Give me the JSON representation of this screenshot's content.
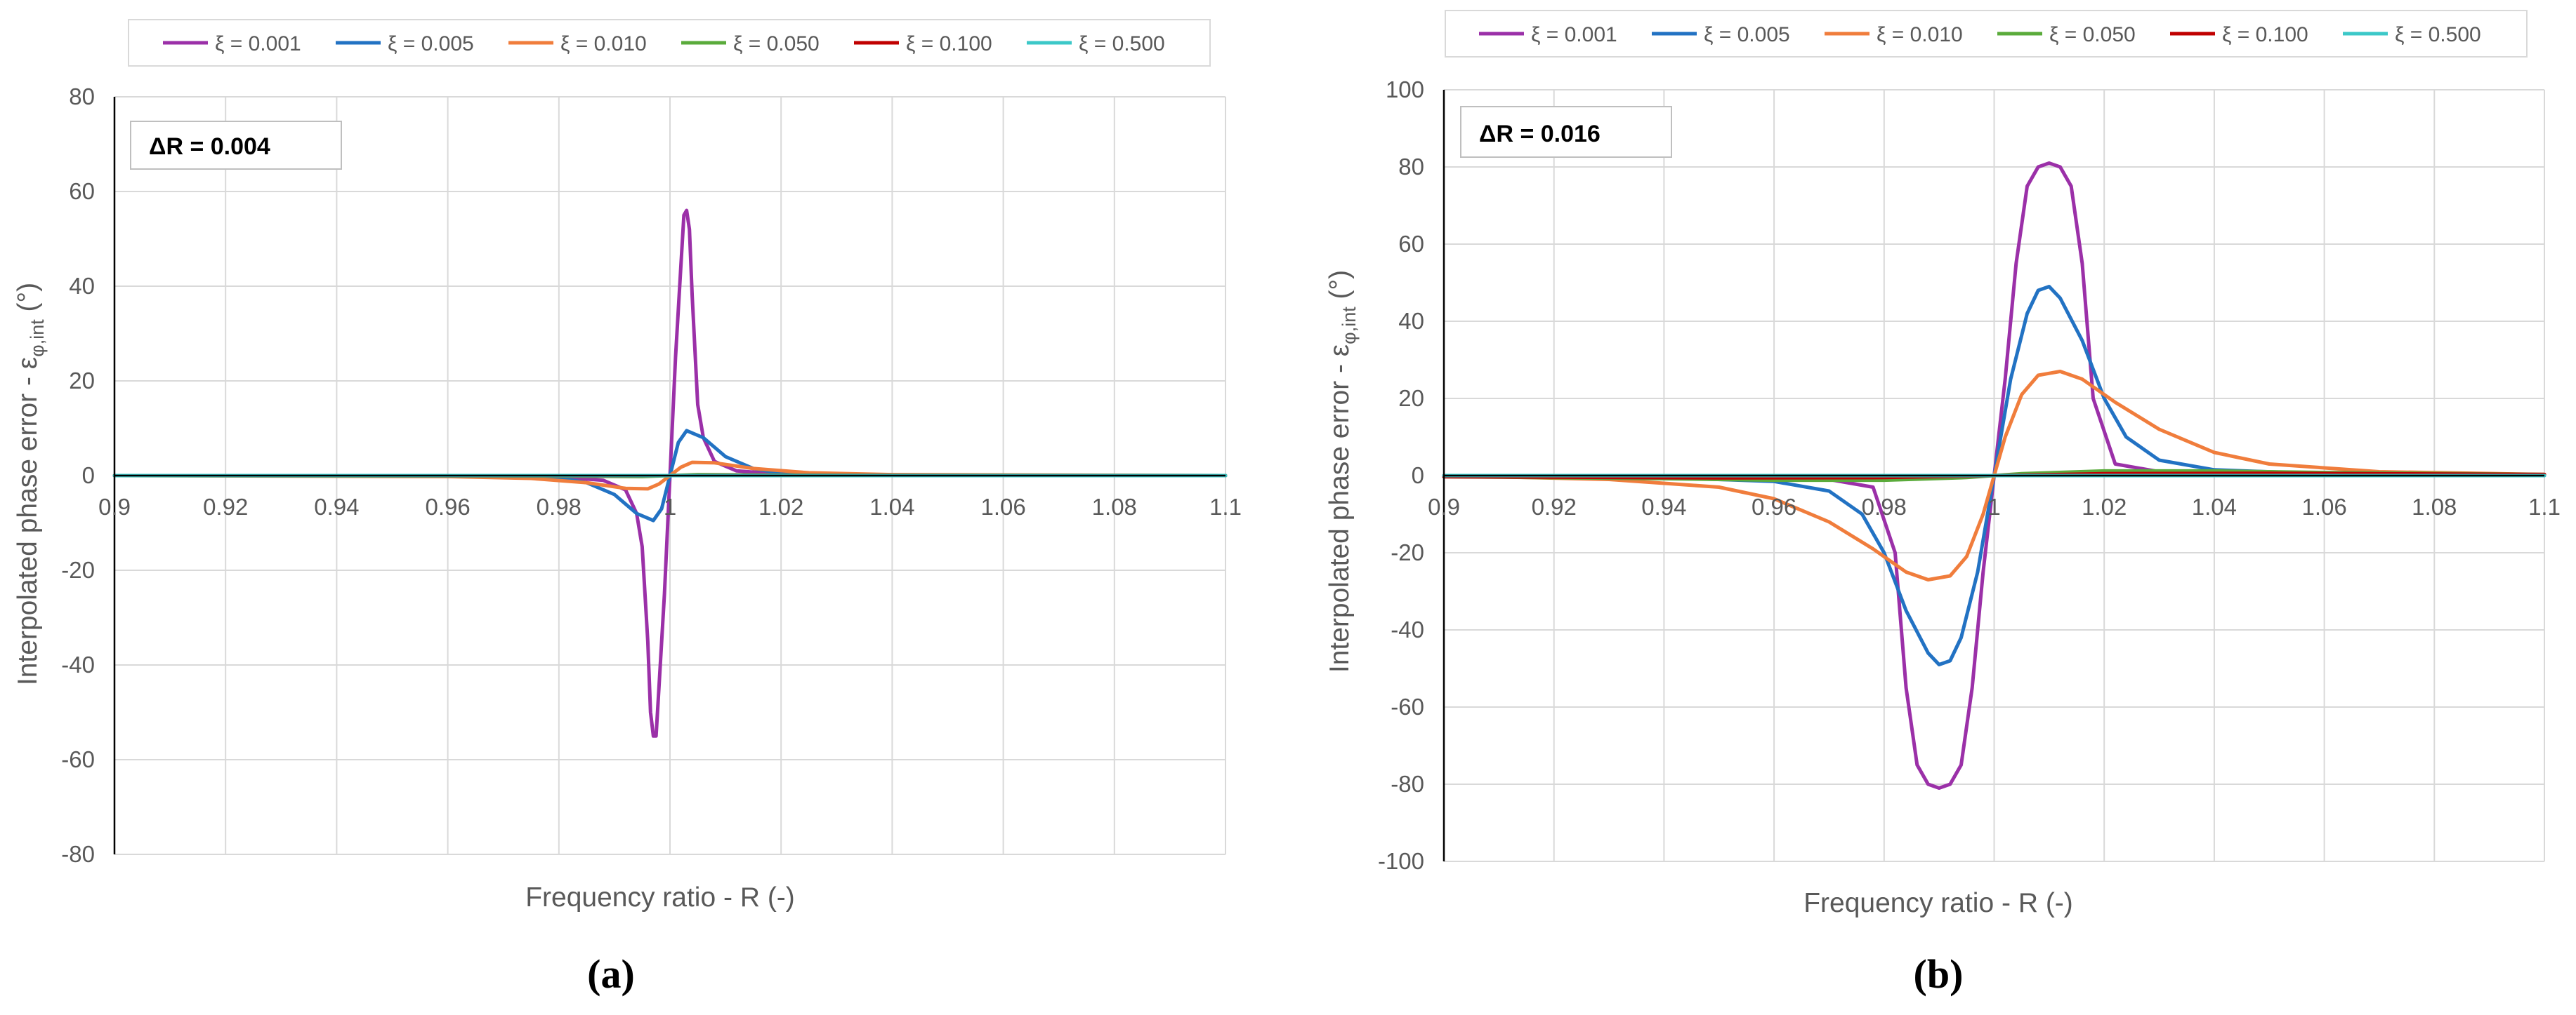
{
  "chart_data": [
    {
      "type": "line",
      "panel_label": "(a)",
      "annotation": "ΔR = 0.004",
      "xlabel": "Frequency ratio - R (-)",
      "ylabel_main": "Interpolated phase error - ε",
      "ylabel_sub": "φ,int",
      "ylabel_tail": " (°)",
      "xlim": [
        0.9,
        1.1
      ],
      "ylim": [
        -80,
        80
      ],
      "xticks": [
        "0.9",
        "0.92",
        "0.94",
        "0.96",
        "0.98",
        "1",
        "1.02",
        "1.04",
        "1.06",
        "1.08",
        "1.1"
      ],
      "yticks": [
        "80",
        "60",
        "40",
        "20",
        "0",
        "-20",
        "-40",
        "-60",
        "-80"
      ],
      "grid": true,
      "legend_position": "top",
      "series": [
        {
          "name": "ξ = 0.001",
          "color": "#9b30a8",
          "points": [
            [
              0.9,
              0
            ],
            [
              0.97,
              0
            ],
            [
              0.98,
              -0.3
            ],
            [
              0.988,
              -1
            ],
            [
              0.992,
              -3
            ],
            [
              0.994,
              -8
            ],
            [
              0.995,
              -15
            ],
            [
              0.996,
              -35
            ],
            [
              0.9965,
              -50
            ],
            [
              0.997,
              -55
            ],
            [
              0.9975,
              -55
            ],
            [
              0.998,
              -45
            ],
            [
              0.999,
              -25
            ],
            [
              1.0,
              0
            ],
            [
              1.001,
              25
            ],
            [
              1.002,
              45
            ],
            [
              1.0025,
              55
            ],
            [
              1.003,
              56
            ],
            [
              1.0035,
              52
            ],
            [
              1.004,
              38
            ],
            [
              1.005,
              15
            ],
            [
              1.006,
              8
            ],
            [
              1.008,
              3
            ],
            [
              1.012,
              1
            ],
            [
              1.02,
              0.3
            ],
            [
              1.03,
              0
            ],
            [
              1.1,
              0
            ]
          ]
        },
        {
          "name": "ξ = 0.005",
          "color": "#2272c3",
          "points": [
            [
              0.9,
              0
            ],
            [
              0.97,
              0
            ],
            [
              0.98,
              -0.5
            ],
            [
              0.985,
              -1.5
            ],
            [
              0.99,
              -4
            ],
            [
              0.994,
              -8
            ],
            [
              0.997,
              -9.5
            ],
            [
              0.9985,
              -7
            ],
            [
              1.0,
              0
            ],
            [
              1.0015,
              7
            ],
            [
              1.003,
              9.5
            ],
            [
              1.006,
              8
            ],
            [
              1.01,
              4
            ],
            [
              1.015,
              1.5
            ],
            [
              1.02,
              0.5
            ],
            [
              1.03,
              0.1
            ],
            [
              1.1,
              0
            ]
          ]
        },
        {
          "name": "ξ = 0.010",
          "color": "#f07d3c",
          "points": [
            [
              0.9,
              0
            ],
            [
              0.96,
              -0.2
            ],
            [
              0.975,
              -0.6
            ],
            [
              0.985,
              -1.5
            ],
            [
              0.992,
              -2.7
            ],
            [
              0.996,
              -2.8
            ],
            [
              0.998,
              -1.8
            ],
            [
              1.0,
              0
            ],
            [
              1.002,
              1.8
            ],
            [
              1.004,
              2.8
            ],
            [
              1.008,
              2.7
            ],
            [
              1.015,
              1.5
            ],
            [
              1.025,
              0.6
            ],
            [
              1.04,
              0.2
            ],
            [
              1.1,
              0
            ]
          ]
        },
        {
          "name": "ξ = 0.050",
          "color": "#5aab3b",
          "points": [
            [
              0.9,
              0
            ],
            [
              0.98,
              -0.1
            ],
            [
              0.995,
              -0.2
            ],
            [
              1.0,
              0
            ],
            [
              1.005,
              0.2
            ],
            [
              1.02,
              0.1
            ],
            [
              1.1,
              0
            ]
          ]
        },
        {
          "name": "ξ = 0.100",
          "color": "#c00000",
          "points": [
            [
              0.9,
              0
            ],
            [
              0.99,
              -0.05
            ],
            [
              1.0,
              0
            ],
            [
              1.01,
              0.05
            ],
            [
              1.1,
              0
            ]
          ]
        },
        {
          "name": "ξ = 0.500",
          "color": "#3cc8c8",
          "points": [
            [
              0.9,
              0
            ],
            [
              1.1,
              0
            ]
          ]
        }
      ]
    },
    {
      "type": "line",
      "panel_label": "(b)",
      "annotation": "ΔR = 0.016",
      "xlabel": "Frequency ratio - R (-)",
      "ylabel_main": "Interpolated phase error - ε",
      "ylabel_sub": "φ,int",
      "ylabel_tail": " (°)",
      "xlim": [
        0.9,
        1.1
      ],
      "ylim": [
        -100,
        100
      ],
      "xticks": [
        "0.9",
        "0.92",
        "0.94",
        "0.96",
        "0.98",
        "1",
        "1.02",
        "1.04",
        "1.06",
        "1.08",
        "1.1"
      ],
      "yticks": [
        "100",
        "80",
        "60",
        "40",
        "20",
        "0",
        "-20",
        "-40",
        "-60",
        "-80",
        "-100"
      ],
      "grid": true,
      "legend_position": "top",
      "series": [
        {
          "name": "ξ = 0.001",
          "color": "#9b30a8",
          "points": [
            [
              0.9,
              0
            ],
            [
              0.95,
              -0.5
            ],
            [
              0.97,
              -1
            ],
            [
              0.978,
              -3
            ],
            [
              0.982,
              -20
            ],
            [
              0.984,
              -55
            ],
            [
              0.986,
              -75
            ],
            [
              0.988,
              -80
            ],
            [
              0.99,
              -81
            ],
            [
              0.992,
              -80
            ],
            [
              0.994,
              -75
            ],
            [
              0.996,
              -55
            ],
            [
              0.998,
              -25
            ],
            [
              1.0,
              0
            ],
            [
              1.002,
              25
            ],
            [
              1.004,
              55
            ],
            [
              1.006,
              75
            ],
            [
              1.008,
              80
            ],
            [
              1.01,
              81
            ],
            [
              1.012,
              80
            ],
            [
              1.014,
              75
            ],
            [
              1.016,
              55
            ],
            [
              1.018,
              20
            ],
            [
              1.022,
              3
            ],
            [
              1.03,
              1
            ],
            [
              1.05,
              0.5
            ],
            [
              1.1,
              0
            ]
          ]
        },
        {
          "name": "ξ = 0.005",
          "color": "#2272c3",
          "points": [
            [
              0.9,
              0
            ],
            [
              0.94,
              -0.5
            ],
            [
              0.96,
              -1.5
            ],
            [
              0.97,
              -4
            ],
            [
              0.976,
              -10
            ],
            [
              0.98,
              -20
            ],
            [
              0.984,
              -35
            ],
            [
              0.988,
              -46
            ],
            [
              0.99,
              -49
            ],
            [
              0.992,
              -48
            ],
            [
              0.994,
              -42
            ],
            [
              0.997,
              -25
            ],
            [
              1.0,
              0
            ],
            [
              1.003,
              25
            ],
            [
              1.006,
              42
            ],
            [
              1.008,
              48
            ],
            [
              1.01,
              49
            ],
            [
              1.012,
              46
            ],
            [
              1.016,
              35
            ],
            [
              1.02,
              20
            ],
            [
              1.024,
              10
            ],
            [
              1.03,
              4
            ],
            [
              1.04,
              1.5
            ],
            [
              1.06,
              0.5
            ],
            [
              1.1,
              0
            ]
          ]
        },
        {
          "name": "ξ = 0.010",
          "color": "#f07d3c",
          "points": [
            [
              0.9,
              0
            ],
            [
              0.93,
              -1
            ],
            [
              0.95,
              -3
            ],
            [
              0.96,
              -6
            ],
            [
              0.97,
              -12
            ],
            [
              0.978,
              -19
            ],
            [
              0.984,
              -25
            ],
            [
              0.988,
              -27
            ],
            [
              0.992,
              -26
            ],
            [
              0.995,
              -21
            ],
            [
              0.998,
              -10
            ],
            [
              1.0,
              0
            ],
            [
              1.002,
              10
            ],
            [
              1.005,
              21
            ],
            [
              1.008,
              26
            ],
            [
              1.012,
              27
            ],
            [
              1.016,
              25
            ],
            [
              1.022,
              19
            ],
            [
              1.03,
              12
            ],
            [
              1.04,
              6
            ],
            [
              1.05,
              3
            ],
            [
              1.07,
              1
            ],
            [
              1.1,
              0.3
            ]
          ]
        },
        {
          "name": "ξ = 0.050",
          "color": "#5aab3b",
          "points": [
            [
              0.9,
              -0.3
            ],
            [
              0.94,
              -0.8
            ],
            [
              0.96,
              -1.2
            ],
            [
              0.98,
              -1.2
            ],
            [
              0.995,
              -0.5
            ],
            [
              1.0,
              0
            ],
            [
              1.005,
              0.5
            ],
            [
              1.02,
              1.2
            ],
            [
              1.04,
              1.2
            ],
            [
              1.06,
              0.8
            ],
            [
              1.1,
              0.3
            ]
          ]
        },
        {
          "name": "ξ = 0.100",
          "color": "#c00000",
          "points": [
            [
              0.9,
              -0.3
            ],
            [
              0.95,
              -0.6
            ],
            [
              0.98,
              -0.5
            ],
            [
              1.0,
              0
            ],
            [
              1.02,
              0.5
            ],
            [
              1.05,
              0.6
            ],
            [
              1.1,
              0.3
            ]
          ]
        },
        {
          "name": "ξ = 0.500",
          "color": "#3cc8c8",
          "points": [
            [
              0.9,
              0
            ],
            [
              1.1,
              0
            ]
          ]
        }
      ]
    }
  ]
}
